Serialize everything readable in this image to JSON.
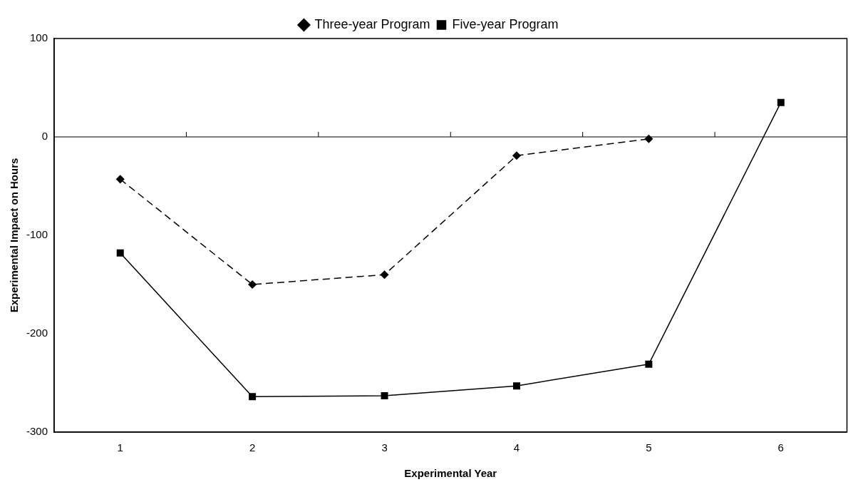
{
  "chart_data": {
    "type": "line",
    "xlabel": "Experimental Year",
    "ylabel": "Experimental Impact on Hours",
    "categories": [
      "1",
      "2",
      "3",
      "4",
      "5",
      "6"
    ],
    "series": [
      {
        "name": "Three-year Program",
        "color": "#000000",
        "values": [
          -43,
          -150,
          -140,
          -19,
          -2,
          null
        ],
        "marker": "diamond",
        "line_style": "dashed"
      },
      {
        "name": "Five-year Program",
        "color": "#000000",
        "values": [
          -118,
          -264,
          -263,
          -253,
          -231,
          35
        ],
        "marker": "square",
        "line_style": "solid"
      }
    ],
    "ylim": [
      -300,
      100
    ],
    "yticks": [
      -300,
      -200,
      -100,
      0,
      100
    ],
    "grid": false,
    "legend": "top",
    "ref_lines": [
      {
        "axis": "y",
        "value": 0,
        "color": "#000000"
      }
    ]
  }
}
